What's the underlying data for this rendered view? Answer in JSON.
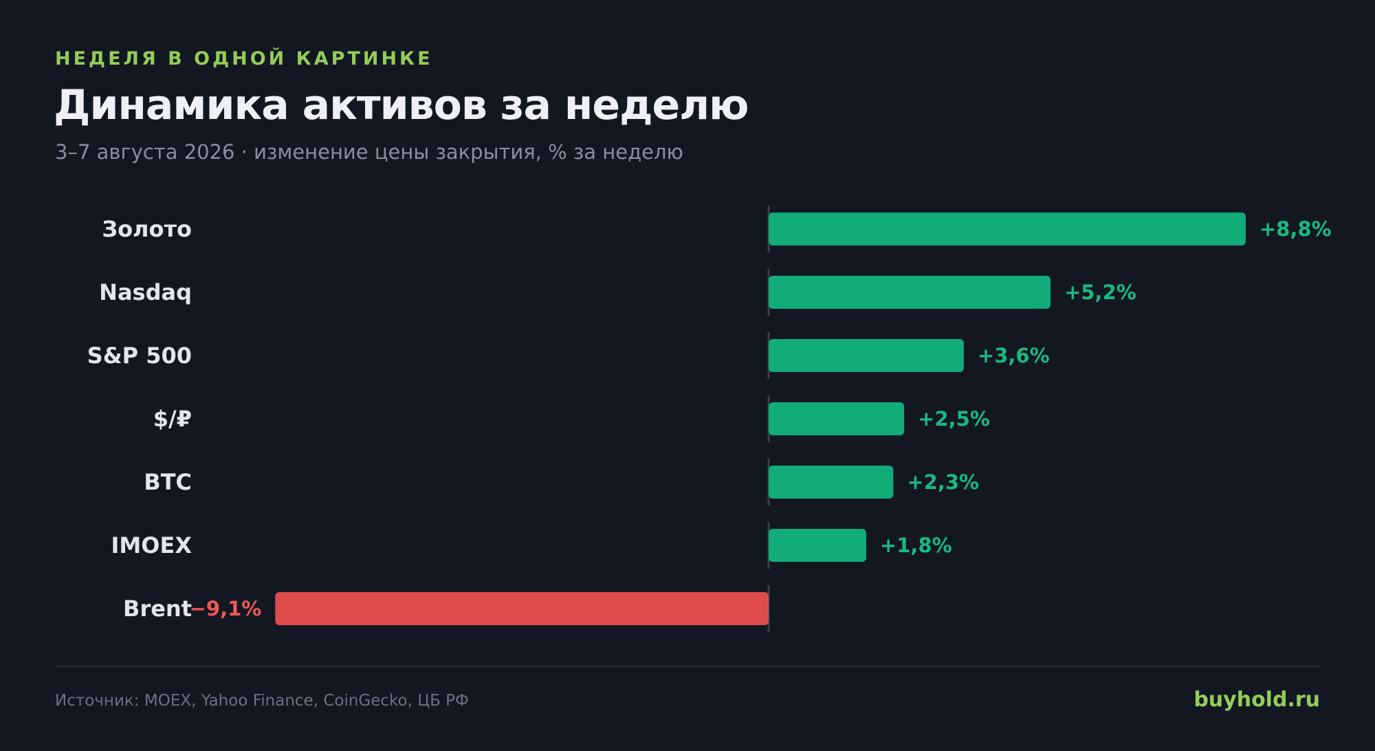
{
  "header": {
    "kicker": "НЕДЕЛЯ В ОДНОЙ КАРТИНКЕ",
    "title": "Динамика активов за неделю",
    "subtitle": "3–7 августа 2026 · изменение цены закрытия, % за неделю"
  },
  "chart_data": {
    "type": "bar",
    "orientation": "horizontal",
    "categories": [
      "Золото",
      "Nasdaq",
      "S&P 500",
      "$/₽",
      "BTC",
      "IMOEX",
      "Brent"
    ],
    "values": [
      8.8,
      5.2,
      3.6,
      2.5,
      2.3,
      1.8,
      -9.1
    ],
    "value_labels": [
      "+8,8%",
      "+5,2%",
      "+3,6%",
      "+2,5%",
      "+2,3%",
      "+1,8%",
      "−9,1%"
    ],
    "xlim": [
      -9.1,
      8.8
    ],
    "grid": false,
    "legend": "none",
    "colors": {
      "positive": "#12ab7a",
      "negative": "#e04c4b",
      "positive_label": "#19b981",
      "negative_label": "#ee5a55",
      "category_label": "#e4e6ec",
      "baseline": "#3a3f4c"
    }
  },
  "footer": {
    "source": "Источник: MOEX, Yahoo Finance, CoinGecko, ЦБ РФ",
    "brand": "buyhold.ru"
  },
  "colors": {
    "background": "#131722",
    "accent": "#93cd57",
    "title": "#eef0f5",
    "subtitle": "#8a8fa0"
  }
}
